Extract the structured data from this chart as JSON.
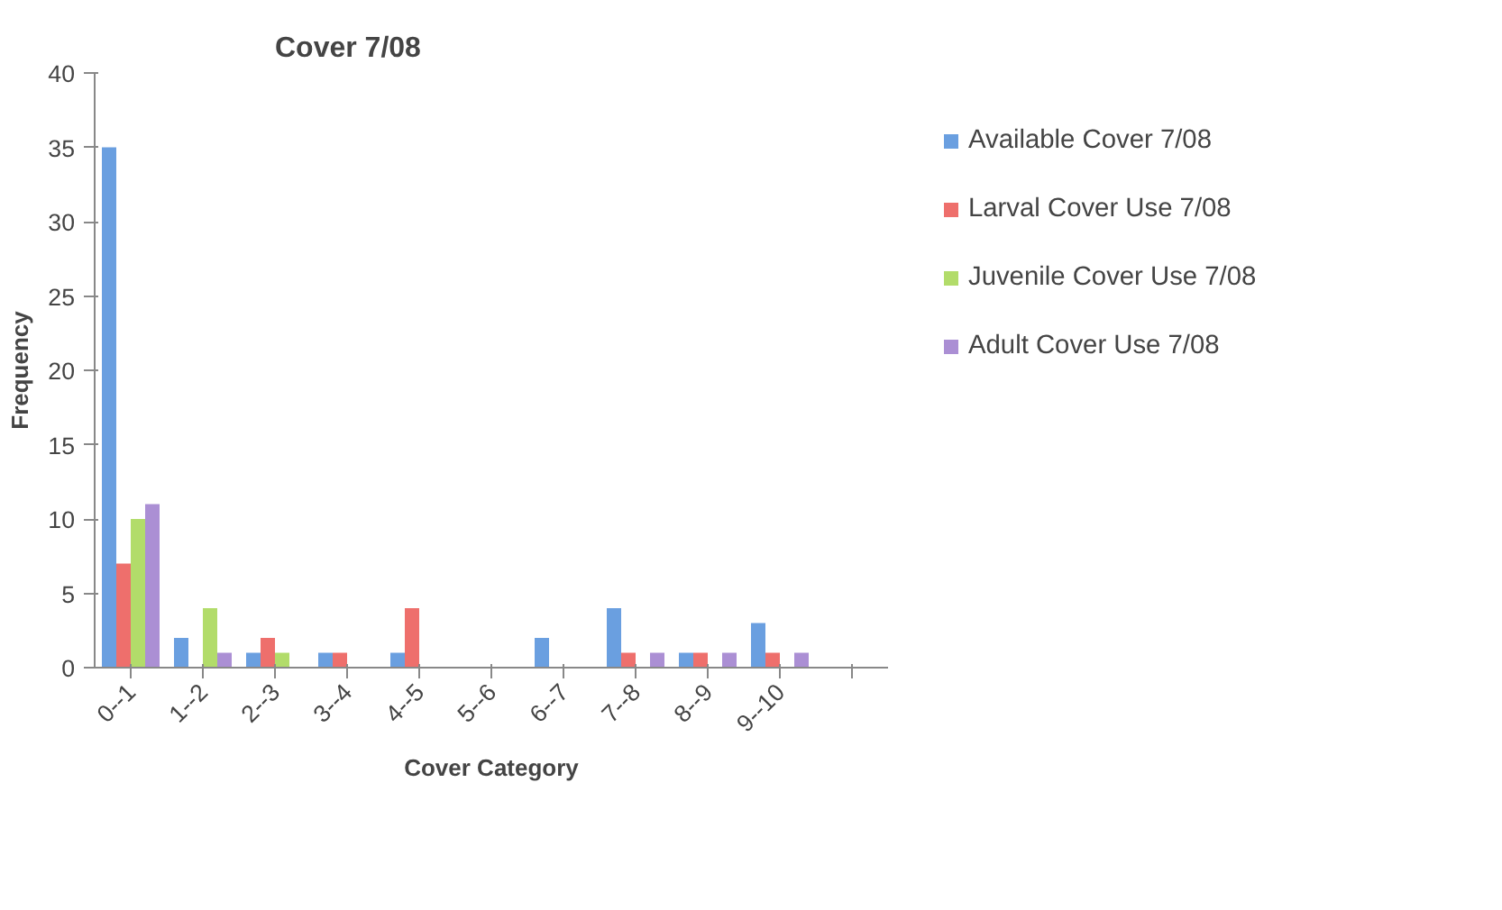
{
  "chart_data": {
    "type": "bar",
    "title": "Cover 7/08",
    "xlabel": "Cover Category",
    "ylabel": "Frequency",
    "categories": [
      "0--1",
      "1--2",
      "2--3",
      "3--4",
      "4--5",
      "5--6",
      "6--7",
      "7--8",
      "8--9",
      "9--10",
      null
    ],
    "series": [
      {
        "name": "Available Cover 7/08",
        "color": "#6a9fe0",
        "values": [
          35,
          2,
          1,
          1,
          1,
          0,
          2,
          4,
          1,
          3,
          null
        ]
      },
      {
        "name": "Larval Cover Use 7/08",
        "color": "#ee6f6c",
        "values": [
          7,
          0,
          2,
          1,
          4,
          0,
          0,
          1,
          1,
          1,
          null
        ]
      },
      {
        "name": "Juvenile Cover Use 7/08",
        "color": "#b2dc6a",
        "values": [
          10,
          4,
          1,
          0,
          0,
          0,
          0,
          0,
          0,
          0,
          null
        ]
      },
      {
        "name": "Adult Cover Use 7/08",
        "color": "#ab8fd4",
        "values": [
          11,
          1,
          0,
          0,
          0,
          0,
          0,
          1,
          1,
          1,
          null
        ]
      }
    ],
    "ylim": [
      0,
      40
    ],
    "yticks": [
      0,
      5,
      10,
      15,
      20,
      25,
      30,
      35,
      40
    ],
    "grid": false,
    "legend": "right"
  }
}
